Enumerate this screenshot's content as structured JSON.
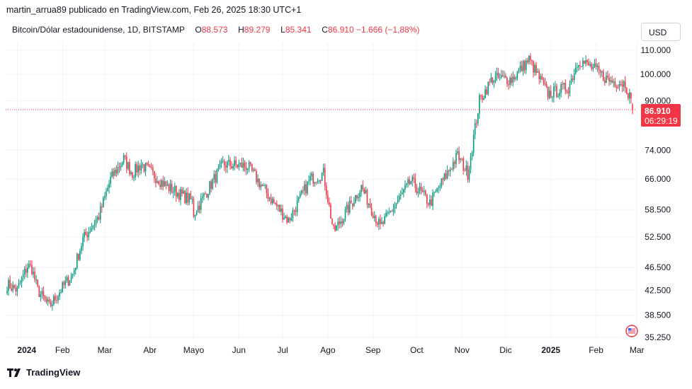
{
  "header": {
    "text": "martin_arrua89 publicado en TradingView.com, Feb 26, 2025 18:30 UTC+1"
  },
  "legend": {
    "symbol": "Bitcoin/Dólar estadounidense, 1D, BITSTAMP",
    "o_label": "O",
    "o_value": "88.573",
    "h_label": "H",
    "h_value": "89.279",
    "l_label": "L",
    "l_value": "85.341",
    "c_label": "C",
    "c_value": "86.910",
    "change": "−1.666 (−1,88%)"
  },
  "currency": "USD",
  "price_badge": {
    "price": "86.910",
    "countdown": "06:29:19"
  },
  "footer": {
    "brand": "TradingView"
  },
  "colors": {
    "up": "#089981",
    "down": "#f23645",
    "grid": "#f0f3fa",
    "axis_text": "#131722"
  },
  "chart_data": {
    "type": "candlestick",
    "scale": "log",
    "last_price": 86910,
    "y_ticks": [
      {
        "value": 110000,
        "label": "110.000"
      },
      {
        "value": 100000,
        "label": "100.000"
      },
      {
        "value": 90000,
        "label": "90.000"
      },
      {
        "value": 74000,
        "label": "74.000"
      },
      {
        "value": 66000,
        "label": "66.000"
      },
      {
        "value": 58500,
        "label": "58.500"
      },
      {
        "value": 52500,
        "label": "52.500"
      },
      {
        "value": 46500,
        "label": "46.500"
      },
      {
        "value": 42500,
        "label": "42.500"
      },
      {
        "value": 38500,
        "label": "38.500"
      },
      {
        "value": 35250,
        "label": "35.250"
      }
    ],
    "x_ticks": [
      {
        "date": "2024-01-01",
        "label": "2024",
        "bold": true
      },
      {
        "date": "2024-02-01",
        "label": "Feb"
      },
      {
        "date": "2024-03-01",
        "label": "Mar"
      },
      {
        "date": "2024-04-01",
        "label": "Abr"
      },
      {
        "date": "2024-05-01",
        "label": "Mayo"
      },
      {
        "date": "2024-06-01",
        "label": "Jun"
      },
      {
        "date": "2024-07-01",
        "label": "Jul"
      },
      {
        "date": "2024-08-01",
        "label": "Ago"
      },
      {
        "date": "2024-09-01",
        "label": "Sep"
      },
      {
        "date": "2024-10-01",
        "label": "Oct"
      },
      {
        "date": "2024-11-01",
        "label": "Nov"
      },
      {
        "date": "2024-12-01",
        "label": "Dic"
      },
      {
        "date": "2025-01-01",
        "label": "2025",
        "bold": true
      },
      {
        "date": "2025-02-01",
        "label": "Feb"
      },
      {
        "date": "2025-03-01",
        "label": "Mar"
      }
    ],
    "date_range": [
      "2023-12-25",
      "2025-02-26"
    ],
    "close_series": [
      {
        "date": "2023-12-25",
        "close": 43500
      },
      {
        "date": "2024-01-01",
        "close": 42500
      },
      {
        "date": "2024-01-08",
        "close": 46800
      },
      {
        "date": "2024-01-11",
        "close": 46300
      },
      {
        "date": "2024-01-15",
        "close": 42500
      },
      {
        "date": "2024-01-23",
        "close": 39800
      },
      {
        "date": "2024-01-31",
        "close": 42600
      },
      {
        "date": "2024-02-08",
        "close": 45300
      },
      {
        "date": "2024-02-15",
        "close": 52000
      },
      {
        "date": "2024-02-26",
        "close": 57000
      },
      {
        "date": "2024-03-05",
        "close": 66000
      },
      {
        "date": "2024-03-14",
        "close": 71500
      },
      {
        "date": "2024-03-20",
        "close": 67500
      },
      {
        "date": "2024-03-26",
        "close": 70000
      },
      {
        "date": "2024-04-13",
        "close": 64000
      },
      {
        "date": "2024-04-30",
        "close": 60500
      },
      {
        "date": "2024-05-01",
        "close": 57500
      },
      {
        "date": "2024-05-15",
        "close": 66000
      },
      {
        "date": "2024-05-21",
        "close": 70000
      },
      {
        "date": "2024-06-07",
        "close": 69500
      },
      {
        "date": "2024-06-24",
        "close": 60500
      },
      {
        "date": "2024-07-05",
        "close": 56000
      },
      {
        "date": "2024-07-20",
        "close": 66000
      },
      {
        "date": "2024-07-29",
        "close": 67500
      },
      {
        "date": "2024-08-05",
        "close": 53500
      },
      {
        "date": "2024-08-24",
        "close": 64000
      },
      {
        "date": "2024-09-06",
        "close": 54500
      },
      {
        "date": "2024-09-27",
        "close": 65500
      },
      {
        "date": "2024-10-10",
        "close": 60000
      },
      {
        "date": "2024-10-29",
        "close": 72500
      },
      {
        "date": "2024-11-05",
        "close": 67500
      },
      {
        "date": "2024-11-13",
        "close": 90000
      },
      {
        "date": "2024-11-22",
        "close": 98500
      },
      {
        "date": "2024-12-05",
        "close": 98000
      },
      {
        "date": "2024-12-17",
        "close": 106000
      },
      {
        "date": "2024-12-30",
        "close": 92500
      },
      {
        "date": "2025-01-13",
        "close": 95000
      },
      {
        "date": "2025-01-20",
        "close": 106000
      },
      {
        "date": "2025-01-31",
        "close": 102000
      },
      {
        "date": "2025-02-10",
        "close": 97500
      },
      {
        "date": "2025-02-21",
        "close": 96500
      },
      {
        "date": "2025-02-24",
        "close": 91500
      },
      {
        "date": "2025-02-26",
        "close": 86910
      }
    ]
  }
}
